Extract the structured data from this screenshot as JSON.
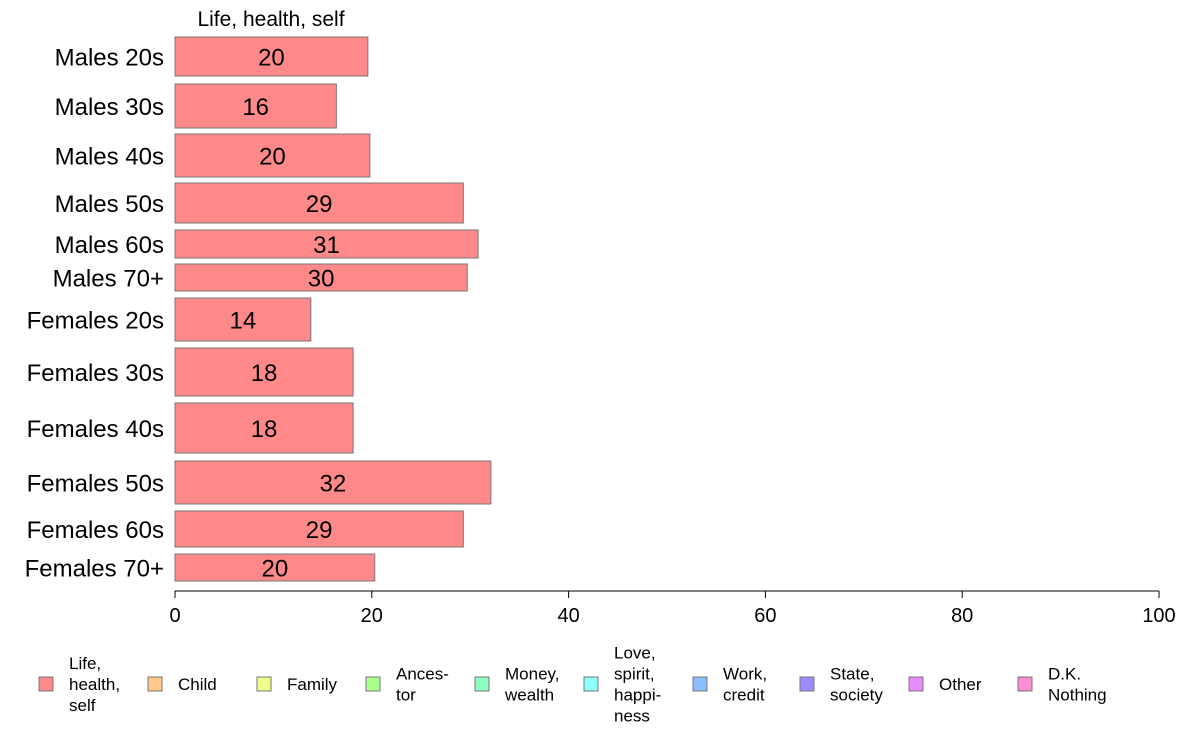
{
  "chart_data": {
    "type": "bar",
    "orientation": "horizontal",
    "title": "Life, health, self",
    "categories": [
      "Males 20s",
      "Males 30s",
      "Males 40s",
      "Males 50s",
      "Males 60s",
      "Males 70+",
      "Females 20s",
      "Females 30s",
      "Females 40s",
      "Females 50s",
      "Females 60s",
      "Females 70+"
    ],
    "series": [
      {
        "name": "Life, health, self",
        "color": "#ff8888",
        "values": [
          19.6,
          16.4,
          19.8,
          29.3,
          30.8,
          29.7,
          13.8,
          18.1,
          18.1,
          32.1,
          29.3,
          20.3
        ],
        "labels": [
          "20",
          "16",
          "20",
          "29",
          "31",
          "30",
          "14",
          "18",
          "18",
          "32",
          "29",
          "20"
        ]
      }
    ],
    "xlim": [
      0,
      100
    ],
    "xticks": [
      0,
      20,
      40,
      60,
      80,
      100
    ],
    "xlabel": "",
    "ylabel": "",
    "grid": false,
    "legend_position": "bottom",
    "legend": [
      {
        "label": [
          "Life,",
          "health,",
          "self"
        ],
        "color": "#ff8888"
      },
      {
        "label": [
          "Child"
        ],
        "color": "#ffc88c"
      },
      {
        "label": [
          "Family"
        ],
        "color": "#f0ff8c"
      },
      {
        "label": [
          "Ances-",
          "tor"
        ],
        "color": "#a8ff8c"
      },
      {
        "label": [
          "Money,",
          "wealth"
        ],
        "color": "#8cffc0"
      },
      {
        "label": [
          "Love,",
          "spirit,",
          "happi-",
          "ness"
        ],
        "color": "#8cffff"
      },
      {
        "label": [
          "Work,",
          "credit"
        ],
        "color": "#8cbcff"
      },
      {
        "label": [
          "State,",
          "society"
        ],
        "color": "#9c8cff"
      },
      {
        "label": [
          "Other"
        ],
        "color": "#e68cff"
      },
      {
        "label": [
          "D.K.",
          "Nothing"
        ],
        "color": "#ff8cd8"
      }
    ]
  }
}
